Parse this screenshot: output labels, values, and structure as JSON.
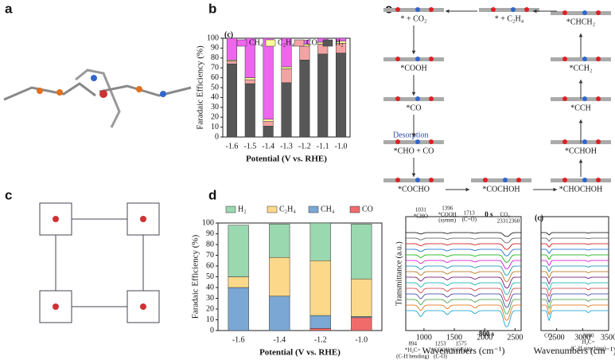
{
  "panel_labels": [
    "a",
    "b",
    "c",
    "d",
    "e"
  ],
  "scheme": {
    "intermediates": [
      "* + CO₂",
      "* + C₂H₄",
      "*CHCH₂",
      "*COOH",
      "*CCH₂",
      "*CO",
      "*CCH",
      "*CHO + CO",
      "*CCHOH",
      "*COCHO",
      "*COCHOH",
      "*CHOCHOH"
    ],
    "note": "Desorption"
  },
  "chart_data": [
    {
      "type": "stacked-bar",
      "panel_tag": "(c)",
      "xlabel": "Potential (V vs. RHE)",
      "ylabel": "Faradaic Efficiency (%)",
      "categories": [
        "-1.6",
        "-1.5",
        "-1.4",
        "-1.3",
        "-1.2",
        "-1.1",
        "-1.0"
      ],
      "series": [
        {
          "name": "H₂",
          "color": "#575757",
          "values": [
            74,
            54,
            11,
            55,
            78,
            84,
            85
          ]
        },
        {
          "name": "CO",
          "color": "#f4a3a3",
          "values": [
            3,
            4,
            5,
            14,
            14,
            10,
            10
          ]
        },
        {
          "name": "C₂H₄",
          "color": "#ffff99",
          "values": [
            1,
            2,
            2,
            2,
            2,
            2,
            2
          ]
        },
        {
          "name": "CH₄",
          "color": "#ee66ee",
          "values": [
            22,
            40,
            82,
            29,
            4,
            4,
            3
          ]
        }
      ],
      "legend_order": [
        3,
        2,
        1,
        0
      ],
      "ylim": [
        0,
        100
      ],
      "yticks": [
        0,
        10,
        20,
        30,
        40,
        50,
        60,
        70,
        80,
        90,
        100
      ]
    },
    {
      "type": "stacked-bar",
      "xlabel": "Potential (V vs. RHE)",
      "ylabel": "Faradaic Efficiency (%)",
      "categories": [
        "-1.6",
        "-1.4",
        "-1.2",
        "-1.0"
      ],
      "series": [
        {
          "name": "CO",
          "color": "#f26b6b",
          "values": [
            0,
            0,
            2,
            12
          ]
        },
        {
          "name": "CH₄",
          "color": "#7ba7d4",
          "values": [
            40,
            32,
            12,
            1
          ]
        },
        {
          "name": "C₂H₄",
          "color": "#fcd98a",
          "values": [
            10,
            36,
            51,
            35
          ]
        },
        {
          "name": "H₂",
          "color": "#9ad8b0",
          "values": [
            48,
            31,
            35,
            51
          ]
        }
      ],
      "legend_order": [
        3,
        2,
        1,
        0
      ],
      "ylim": [
        0,
        100
      ],
      "yticks": [
        0,
        10,
        20,
        30,
        40,
        50,
        60,
        70,
        80,
        90,
        100
      ]
    },
    {
      "type": "spectra",
      "xlabel": "Wavenumbers (cm⁻¹)",
      "ylabel": "Transmittance (a.u.)",
      "xlim": [
        700,
        2600
      ],
      "xticks": [
        1000,
        1500,
        2000,
        2500
      ],
      "annotations": [
        "1031",
        "*CHO",
        "1396",
        "*COOH",
        "(symm)",
        "1713",
        "(C=O)",
        "0 s",
        "CO₂",
        "2331",
        "2360",
        "894",
        "*H₂C=",
        "(C-H bending)",
        "1253",
        "*COOH",
        "(C-O)",
        "1575",
        "*COCHO",
        "800 s"
      ]
    },
    {
      "type": "spectra",
      "panel_tag": "(c)",
      "xlabel": "Wavenumbers (cm⁻¹)",
      "xlim": [
        2200,
        3500
      ],
      "xticks": [
        2500,
        3000,
        3500
      ],
      "annotations": [
        "CO₂",
        "3100",
        "H₂C=",
        "(C-H streching)"
      ]
    }
  ]
}
